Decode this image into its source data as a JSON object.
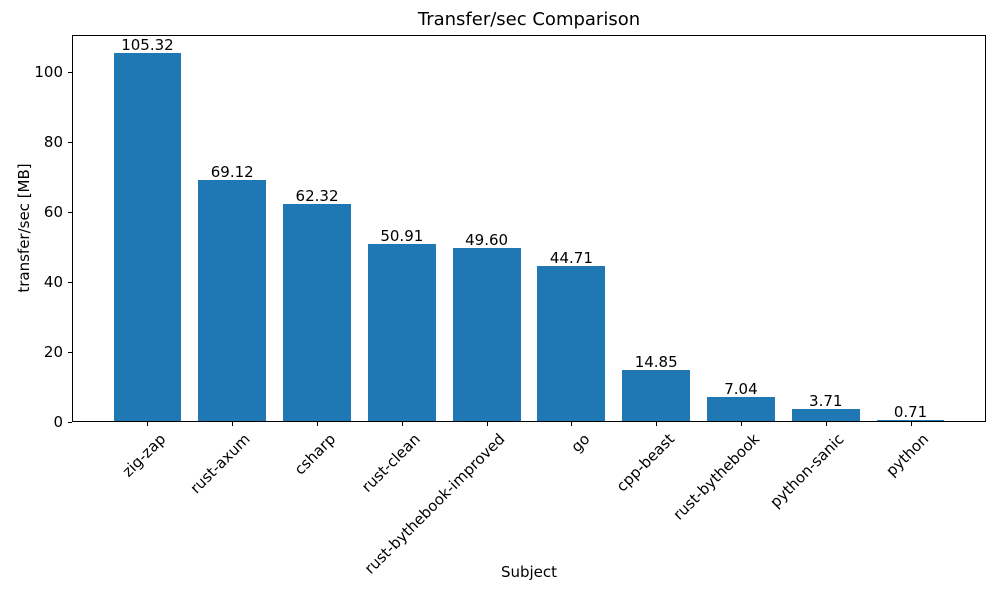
{
  "figure": {
    "background": "#ffffff"
  },
  "chart_data": {
    "type": "bar",
    "title": "Transfer/sec Comparison",
    "xlabel": "Subject",
    "ylabel": "transfer/sec [MB]",
    "categories": [
      "zig-zap",
      "rust-axum",
      "csharp",
      "rust-clean",
      "rust-bythebook-improved",
      "go",
      "cpp-beast",
      "rust-bythebook",
      "python-sanic",
      "python"
    ],
    "values": [
      105.32,
      69.12,
      62.32,
      50.91,
      49.6,
      44.71,
      14.85,
      7.04,
      3.71,
      0.71
    ],
    "value_labels": [
      "105.32",
      "69.12",
      "62.32",
      "50.91",
      "49.60",
      "44.71",
      "14.85",
      "7.04",
      "3.71",
      "0.71"
    ],
    "yticks": [
      0,
      20,
      40,
      60,
      80,
      100
    ],
    "ylim": [
      0,
      110.59
    ],
    "grid": false,
    "bar_color": "#1f77b4",
    "axis_color": "#000000",
    "text_color": "#000000",
    "bar_width_fraction": 0.8,
    "x_margin_fraction": 0.05,
    "xtick_rotation_deg": 45
  }
}
